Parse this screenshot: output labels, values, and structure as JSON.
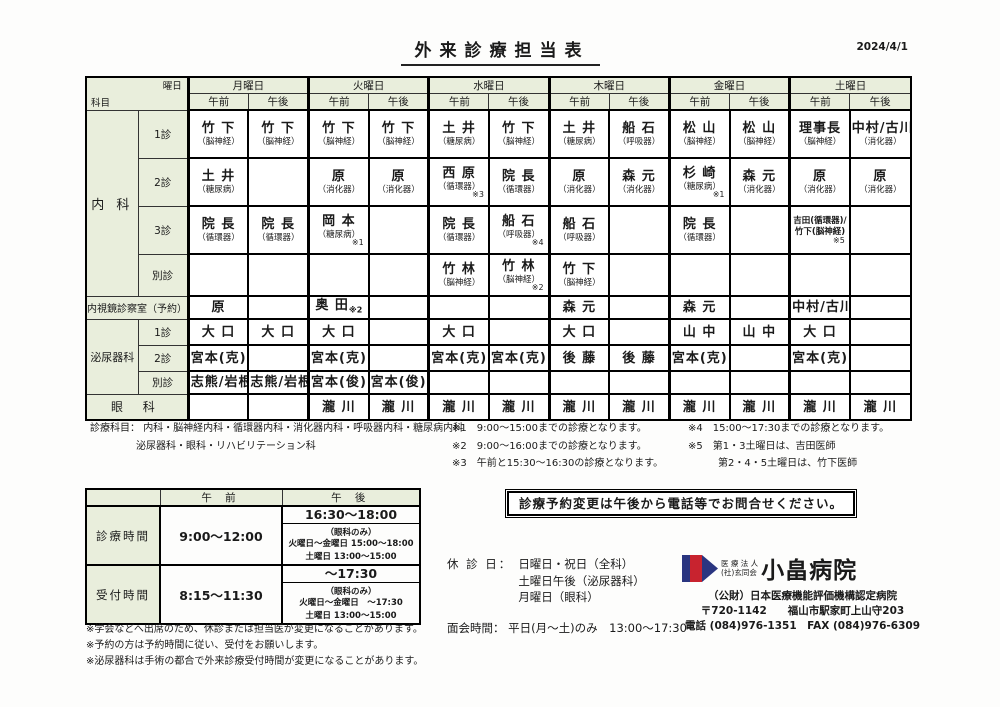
{
  "page": {
    "title": "外来診療担当表",
    "date": "2024/4/1"
  },
  "colors": {
    "header_green": "#e9eedc",
    "logo_navy": "#2a3580",
    "logo_red": "#c8232f"
  },
  "schedule": {
    "corner_top": "曜日",
    "corner_bottom": "科目",
    "days": [
      "月曜日",
      "火曜日",
      "水曜日",
      "木曜日",
      "金曜日",
      "土曜日"
    ],
    "period_labels": [
      "午前",
      "午後"
    ],
    "rows": [
      {
        "dept": "内 科",
        "drows": 4,
        "sub": "1診",
        "cells": [
          {
            "name": "竹 下",
            "spec": "（脳神経）"
          },
          {
            "name": "竹 下",
            "spec": "（脳神経）"
          },
          {
            "name": "竹 下",
            "spec": "（脳神経）"
          },
          {
            "name": "竹 下",
            "spec": "（脳神経）"
          },
          {
            "name": "土 井",
            "spec": "（糖尿病）"
          },
          {
            "name": "竹 下",
            "spec": "（脳神経）"
          },
          {
            "name": "土 井",
            "spec": "（糖尿病）"
          },
          {
            "name": "船 石",
            "spec": "（呼吸器）"
          },
          {
            "name": "松 山",
            "spec": "（脳神経）"
          },
          {
            "name": "松 山",
            "spec": "（脳神経）"
          },
          {
            "name": "理事長",
            "spec": "（脳神経）"
          },
          {
            "name": "中村/古川",
            "spec": "（消化器）"
          }
        ]
      },
      {
        "sub": "2診",
        "cells": [
          {
            "name": "土 井",
            "spec": "（糖尿病）"
          },
          {},
          {
            "name": "原",
            "spec": "（消化器）"
          },
          {
            "name": "原",
            "spec": "（消化器）"
          },
          {
            "name": "西 原",
            "spec": "（循環器）",
            "note": "※3"
          },
          {
            "name": "院 長",
            "spec": "（循環器）"
          },
          {
            "name": "原",
            "spec": "（消化器）"
          },
          {
            "name": "森 元",
            "spec": "（消化器）"
          },
          {
            "name": "杉 崎",
            "spec": "（糖尿病）",
            "note": "※1"
          },
          {
            "name": "森 元",
            "spec": "（消化器）"
          },
          {
            "name": "原",
            "spec": "（消化器）"
          },
          {
            "name": "原",
            "spec": "（消化器）"
          }
        ]
      },
      {
        "sub": "3診",
        "cells": [
          {
            "name": "院 長",
            "spec": "（循環器）"
          },
          {
            "name": "院 長",
            "spec": "（循環器）"
          },
          {
            "name": "岡 本",
            "spec": "（糖尿病）",
            "note": "※1"
          },
          {},
          {
            "name": "院 長",
            "spec": "（循環器）"
          },
          {
            "name": "船 石",
            "spec": "（呼吸器）",
            "note": "※4"
          },
          {
            "name": "船 石",
            "spec": "（呼吸器）"
          },
          {},
          {
            "name": "院 長",
            "spec": "（循環器）"
          },
          {},
          {
            "lines": [
              "吉田(循環器)/",
              "竹下(脳神経)"
            ],
            "note": "※5"
          },
          {}
        ]
      },
      {
        "sub": "別診",
        "cells": [
          {},
          {},
          {},
          {},
          {
            "name": "竹 林",
            "spec": "（脳神経）"
          },
          {
            "name": "竹 林",
            "spec": "（脳神経）",
            "note": "※2"
          },
          {
            "name": "竹 下",
            "spec": "（脳神経）"
          },
          {},
          {},
          {},
          {},
          {}
        ]
      },
      {
        "label": "内視鏡診察室（予約）",
        "cells": [
          {
            "name": "原"
          },
          {},
          {
            "name": "奥 田",
            "note": "※2"
          },
          {},
          {},
          {},
          {
            "name": "森 元"
          },
          {},
          {
            "name": "森 元"
          },
          {},
          {
            "name": "中村/古川"
          },
          {}
        ]
      },
      {
        "dept": "泌尿器科",
        "drows": 3,
        "sub": "1診",
        "cells": [
          {
            "name": "大 口"
          },
          {
            "name": "大 口"
          },
          {
            "name": "大 口"
          },
          {},
          {
            "name": "大 口"
          },
          {},
          {
            "name": "大 口"
          },
          {},
          {
            "name": "山 中"
          },
          {
            "name": "山 中"
          },
          {
            "name": "大 口"
          },
          {}
        ]
      },
      {
        "sub": "2診",
        "cells": [
          {
            "name": "宮本(克)"
          },
          {},
          {
            "name": "宮本(克)"
          },
          {},
          {
            "name": "宮本(克)"
          },
          {
            "name": "宮本(克)"
          },
          {
            "name": "後 藤"
          },
          {
            "name": "後 藤"
          },
          {
            "name": "宮本(克)"
          },
          {},
          {
            "name": "宮本(克)"
          },
          {}
        ]
      },
      {
        "sub": "別診",
        "cells": [
          {
            "name": "志熊/岩根"
          },
          {
            "name": "志熊/岩根"
          },
          {
            "name": "宮本(俊)"
          },
          {
            "name": "宮本(俊)"
          },
          {},
          {},
          {},
          {},
          {},
          {},
          {},
          {}
        ]
      },
      {
        "label": "眼 科",
        "eye": true,
        "cells": [
          {},
          {},
          {
            "name": "瀧 川"
          },
          {
            "name": "瀧 川"
          },
          {
            "name": "瀧 川"
          },
          {
            "name": "瀧 川"
          },
          {
            "name": "瀧 川"
          },
          {
            "name": "瀧 川"
          },
          {
            "name": "瀧 川"
          },
          {
            "name": "瀧 川"
          },
          {
            "name": "瀧 川"
          },
          {
            "name": "瀧 川"
          }
        ]
      }
    ]
  },
  "notes": {
    "left_label": "診療科目：",
    "left_line1": "内科・脳神経内科・循環器内科・消化器内科・呼吸器内科・糖尿病内科",
    "left_line2": "泌尿器科・眼科・リハビリテーション科",
    "mid": [
      "※1　9:00～15:00までの診療となります。",
      "※2　9:00～16:00までの診療となります。",
      "※3　午前と15:30～16:30の診療となります。"
    ],
    "right": [
      "※4　15:00～17:30までの診療となります。",
      "※5　第1・3土曜日は、吉田医師",
      "第2・4・5土曜日は、竹下医師"
    ]
  },
  "hours": {
    "header_am": "午 前",
    "header_pm": "午 後",
    "rows": [
      {
        "label": "診療時間",
        "am": "9:00～12:00",
        "pm_main": "16:30～18:00",
        "pm_note": "（眼科のみ）",
        "pm_line1": "火曜日～金曜日 15:00～18:00",
        "pm_line2": "土曜日 13:00～15:00"
      },
      {
        "label": "受付時間",
        "am": "8:15～11:30",
        "pm_main": "～17:30",
        "pm_note": "（眼科のみ）",
        "pm_line1": "火曜日～金曜日　～17:30",
        "pm_line2": "土曜日 13:00～15:00"
      }
    ]
  },
  "footnotes": [
    "※学会などへ出席のため、休診または担当医が変更になることがあります。",
    "※予約の方は予約時間に従い、受付をお願いします。",
    "※泌尿器科は手術の都合で外来診療受付時間が変更になることがあります。"
  ],
  "notice": "診療予約変更は午後から電話等でお問合せください。",
  "closed": {
    "label": "休 診 日：",
    "lines": [
      "日曜日・祝日（全科）",
      "土曜日午後（泌尿器科）",
      "月曜日（眼科）"
    ],
    "visiting_label": "面会時間：",
    "visiting_text": "平日(月～土)のみ　13:00～17:30"
  },
  "hospital": {
    "legal1": "医 療 法 人",
    "legal2": "(社)玄同会",
    "name": "小畠病院",
    "cert": "（公財）日本医療機能評価機構認定病院",
    "addr": "〒720-1142　　福山市駅家町上山守203",
    "tel": "電話 (084)976-1351　FAX (084)976-6309"
  }
}
